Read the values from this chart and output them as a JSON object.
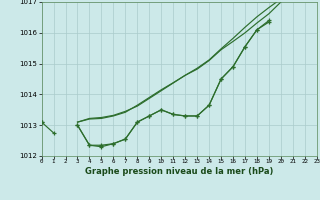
{
  "title": "Graphe pression niveau de la mer (hPa)",
  "background_color": "#cce9e9",
  "grid_color": "#aacccc",
  "line_color": "#2d6e2d",
  "x_range": [
    0,
    23
  ],
  "y_range": [
    1012,
    1017
  ],
  "y_ticks": [
    1012,
    1013,
    1014,
    1015,
    1016,
    1017
  ],
  "x_ticks": [
    0,
    1,
    2,
    3,
    4,
    5,
    6,
    7,
    8,
    9,
    10,
    11,
    12,
    13,
    14,
    15,
    16,
    17,
    18,
    19,
    20,
    21,
    22,
    23
  ],
  "line1": [
    1013.1,
    1012.75,
    null,
    1013.0,
    1012.35,
    1012.35,
    1012.4,
    1012.55,
    1013.1,
    1013.3,
    1013.5,
    1013.35,
    1013.3,
    1013.3,
    1013.65,
    1014.5,
    1014.9,
    1015.55,
    1016.1,
    1016.35,
    null,
    null,
    null,
    null
  ],
  "line2": [
    1013.1,
    null,
    null,
    1013.0,
    1012.35,
    1012.3,
    1012.4,
    1012.55,
    1013.1,
    1013.3,
    1013.5,
    1013.35,
    1013.3,
    1013.3,
    1013.65,
    1014.5,
    1014.9,
    1015.55,
    1016.1,
    1016.4,
    null,
    null,
    null,
    null
  ],
  "line3": [
    1013.1,
    null,
    null,
    1013.1,
    1013.2,
    1013.22,
    1013.3,
    1013.42,
    1013.65,
    1013.9,
    1014.15,
    1014.38,
    1014.62,
    1014.82,
    1015.1,
    1015.45,
    1015.72,
    1016.0,
    1016.32,
    1016.62,
    1017.0,
    null,
    null,
    null
  ],
  "line4": [
    1013.1,
    null,
    null,
    1013.1,
    1013.22,
    1013.25,
    1013.32,
    1013.45,
    1013.62,
    1013.87,
    1014.12,
    1014.37,
    1014.62,
    1014.85,
    1015.12,
    1015.48,
    1015.82,
    1016.18,
    1016.52,
    1016.82,
    1017.1,
    null,
    null,
    null
  ]
}
